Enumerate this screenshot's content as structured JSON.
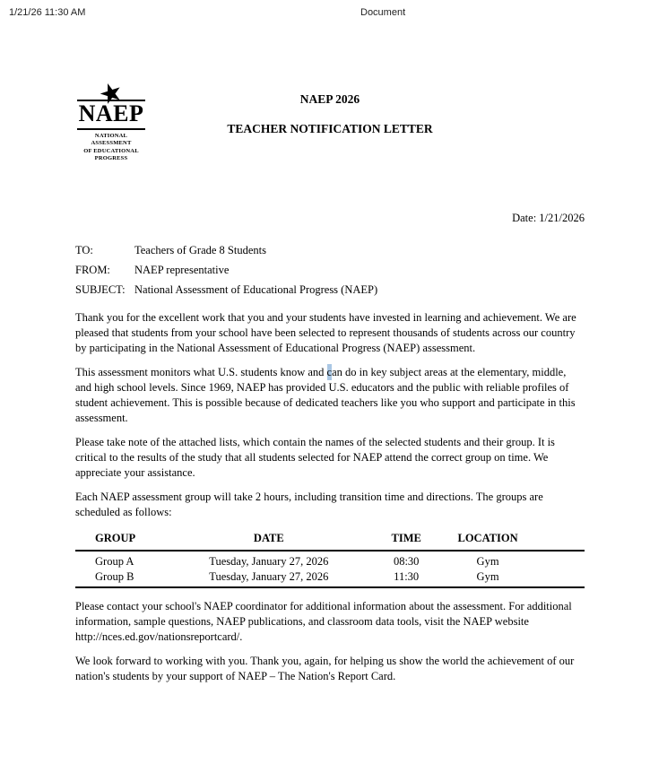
{
  "print_header": {
    "datetime": "1/21/26 11:30 AM",
    "title": "Document"
  },
  "logo": {
    "star": "★",
    "name": "NAEP",
    "caption_lines": [
      "NATIONAL ASSESSMENT",
      "OF EDUCATIONAL",
      "PROGRESS"
    ]
  },
  "letter": {
    "title_line1": "NAEP 2026",
    "title_line2": "TEACHER NOTIFICATION LETTER",
    "date_line": "Date: 1/21/2026",
    "memo": [
      {
        "label": "TO:",
        "value": "Teachers of Grade 8 Students"
      },
      {
        "label": "FROM:",
        "value": "NAEP representative"
      },
      {
        "label": "SUBJECT:",
        "value": "National Assessment of Educational Progress (NAEP)"
      }
    ],
    "paragraphs": {
      "p1": "Thank you for the excellent work that you and your students have invested in learning and achievement. We are pleased that students from your school have been selected to represent thousands of students across our country by participating in the National Assessment of Educational Progress (NAEP) assessment.",
      "p2_before": "This assessment monitors what U.S. students know and ",
      "p2_highlight": "c",
      "p2_after": "an do in key subject areas at the elementary, middle, and high school levels. Since 1969, NAEP has provided U.S. educators and the public with reliable profiles of student achievement. This is possible because of dedicated teachers like you who support and participate in this assessment.",
      "p3": "Please take note of the attached lists, which contain the names of the selected students and their group. It is critical to the results of the study that all students selected for NAEP attend the correct group on time. We appreciate your assistance.",
      "p4": "Each NAEP assessment group will take 2 hours, including transition time and directions. The groups are scheduled as follows:",
      "p5": "Please contact your school's NAEP coordinator for additional information about the assessment. For additional information, sample questions, NAEP publications, and classroom data tools, visit the NAEP website http://nces.ed.gov/nationsreportcard/.",
      "p6": "We look forward to working with you. Thank you, again, for helping us show the world the achievement of our nation's students by your support of NAEP – The Nation's Report Card."
    },
    "schedule_table": {
      "headers": [
        "GROUP",
        "DATE",
        "TIME",
        "LOCATION"
      ],
      "rows": [
        [
          "Group A",
          "Tuesday, January 27, 2026",
          "08:30",
          "Gym"
        ],
        [
          "Group B",
          "Tuesday, January 27, 2026",
          "11:30",
          "Gym"
        ]
      ]
    },
    "selection_highlight_color": "#aac7e4"
  }
}
